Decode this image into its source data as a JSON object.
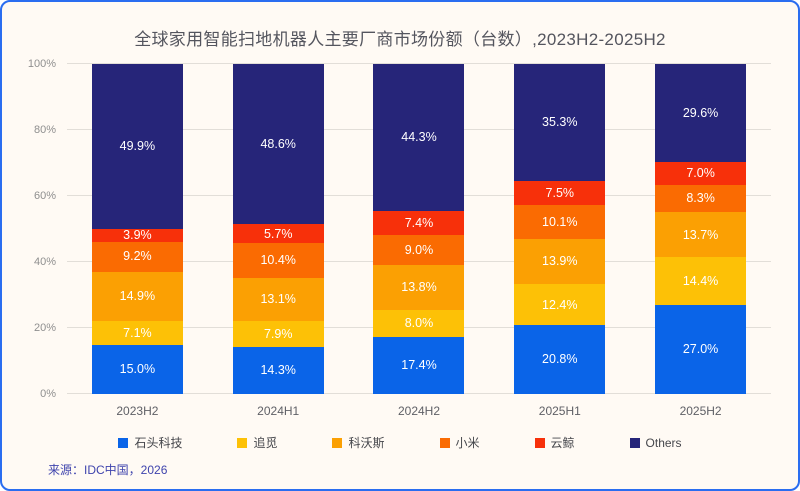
{
  "title": "全球家用智能扫地机器人主要厂商市场份额（台数）,2023H2-2025H2",
  "source": "来源：IDC中国，2026",
  "colors": {
    "card_border": "#2a6df0",
    "card_background": "#fffaf4",
    "gridline": "#e2ded8",
    "title_text": "#54555e",
    "axis_text": "#8f8f8f",
    "source_text": "#3f44ad"
  },
  "chart_data": {
    "type": "bar",
    "stacked": true,
    "title": "全球家用智能扫地机器人主要厂商市场份额（台数）,2023H2-2025H2",
    "categories": [
      "2023H2",
      "2024H1",
      "2024H2",
      "2025H1",
      "2025H2"
    ],
    "series": [
      {
        "name": "石头科技",
        "color": "#0A64E8",
        "values": [
          15.0,
          14.3,
          17.4,
          20.8,
          27.0
        ]
      },
      {
        "name": "追觅",
        "color": "#FDC106",
        "values": [
          7.1,
          7.9,
          8.0,
          12.4,
          14.4
        ]
      },
      {
        "name": "科沃斯",
        "color": "#FBA003",
        "values": [
          14.9,
          13.1,
          13.8,
          13.9,
          13.7
        ]
      },
      {
        "name": "小米",
        "color": "#FA6B02",
        "values": [
          9.2,
          10.4,
          9.0,
          10.1,
          8.3
        ]
      },
      {
        "name": "云鲸",
        "color": "#F7300A",
        "values": [
          3.9,
          5.7,
          7.4,
          7.5,
          7.0
        ]
      },
      {
        "name": "Others",
        "color": "#262579",
        "values": [
          49.9,
          48.6,
          44.3,
          35.3,
          29.6
        ]
      }
    ],
    "y_ticks": [
      "0%",
      "20%",
      "40%",
      "60%",
      "80%",
      "100%"
    ],
    "ylim": [
      0,
      100
    ],
    "grid": true,
    "legend_position": "bottom",
    "value_suffix": "%",
    "value_labels_shown": true
  }
}
